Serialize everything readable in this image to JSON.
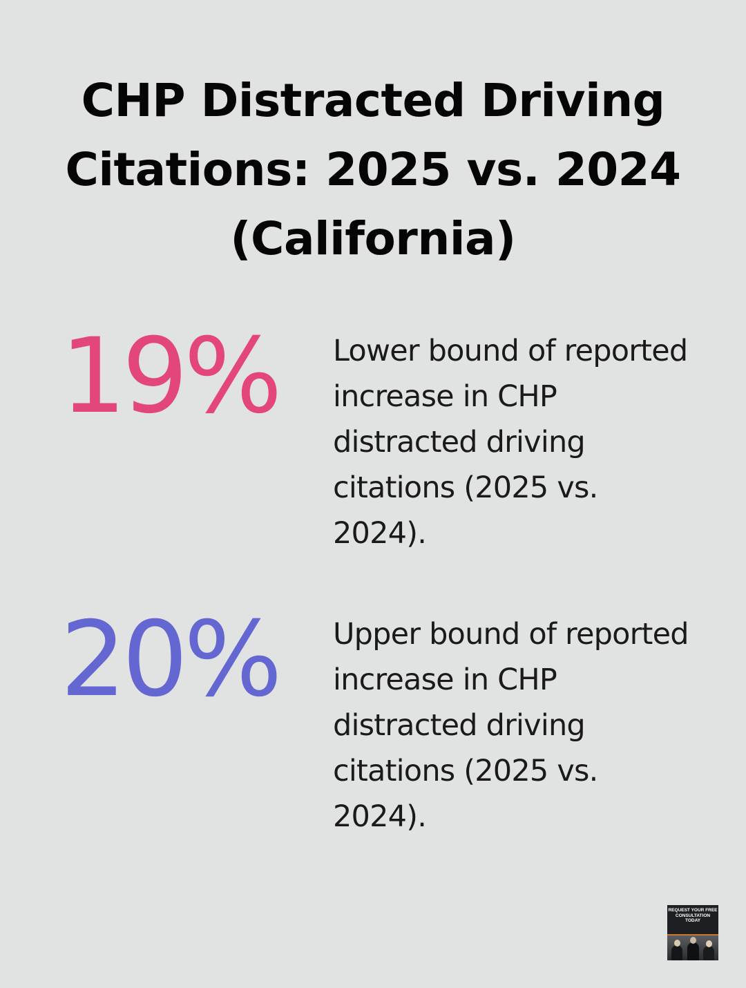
{
  "title": "CHP Distracted Driving Citations: 2025 vs. 2024 (California)",
  "stats": [
    {
      "value": "19%",
      "description": "Lower bound of reported increase in CHP distracted driving citations (2025 vs. 2024).",
      "color": "#e3467a"
    },
    {
      "value": "20%",
      "description": "Upper bound of reported increase in CHP distracted driving citations (2025 vs. 2024).",
      "color": "#6466d2"
    }
  ],
  "cta": {
    "text": "REQUEST YOUR FREE CONSULTATION TODAY"
  }
}
